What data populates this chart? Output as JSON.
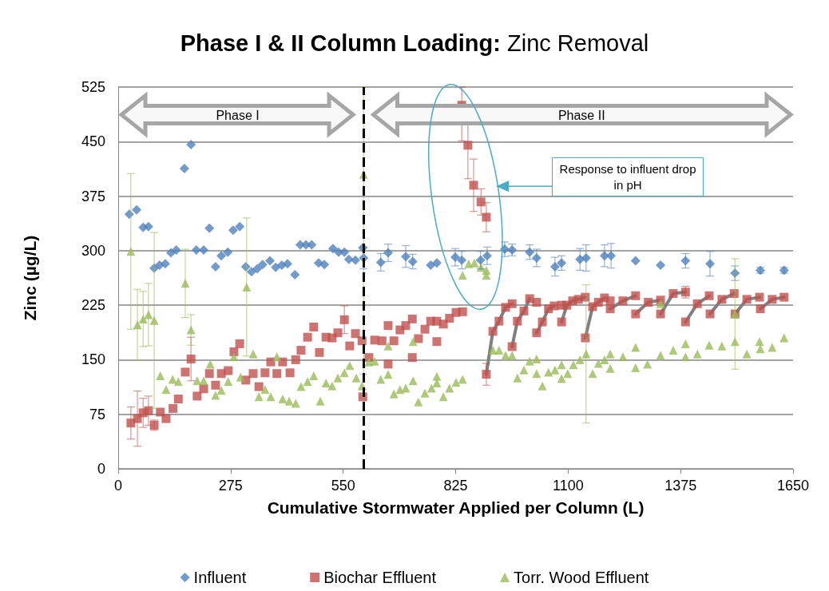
{
  "chart_data": {
    "type": "scatter",
    "title": "Phase I & II Column Loading: Zinc Removal",
    "xlabel": "Cumulative Stormwater Applied per Column (L)",
    "ylabel": "Zinc (µg/L)",
    "xlim": [
      0,
      1650
    ],
    "xticks": [
      0,
      275,
      550,
      825,
      1100,
      1375,
      1650
    ],
    "ylim": [
      0,
      525
    ],
    "yticks": [
      0,
      75,
      150,
      225,
      300,
      375,
      450,
      525
    ],
    "grid": "y",
    "legend": "bottom",
    "annotations": [
      "Phase I",
      "Phase II",
      "Response to influent drop in pH"
    ],
    "ref_lines": [
      {
        "axis": "x",
        "value": 600,
        "color": "#000000",
        "line_style": "dashed"
      }
    ],
    "series": [
      {
        "name": "Influent",
        "color": "#4f81bd",
        "marker": "diamond",
        "x": [
          27,
          45,
          61,
          74,
          88,
          101,
          115,
          129,
          142,
          162,
          178,
          191,
          209,
          223,
          238,
          252,
          268,
          281,
          297,
          312,
          326,
          340,
          353,
          371,
          385,
          400,
          414,
          432,
          445,
          459,
          473,
          490,
          504,
          525,
          539,
          553,
          564,
          580,
          598,
          600,
          642,
          660,
          703,
          720,
          764,
          779,
          824,
          840,
          886,
          902,
          945,
          963,
          1006,
          1023,
          1068,
          1084,
          1129,
          1144,
          1189,
          1205,
          1265,
          1326,
          1387,
          1447,
          1508,
          1570,
          1628
        ],
        "values": [
          350,
          356,
          332,
          333,
          276,
          280,
          282,
          297,
          301,
          413,
          446,
          301,
          301,
          331,
          278,
          293,
          298,
          328,
          333,
          278,
          271,
          275,
          281,
          286,
          277,
          280,
          282,
          267,
          308,
          308,
          308,
          283,
          281,
          303,
          298,
          298,
          288,
          287,
          304,
          290,
          284,
          297,
          292,
          285,
          280,
          283,
          291,
          287,
          287,
          293,
          302,
          301,
          298,
          290,
          278,
          283,
          288,
          290,
          293,
          293,
          286,
          280,
          286,
          282,
          269,
          273,
          273
        ],
        "errors": [
          null,
          null,
          null,
          null,
          null,
          null,
          null,
          null,
          null,
          null,
          null,
          null,
          null,
          null,
          null,
          null,
          null,
          null,
          null,
          null,
          null,
          null,
          null,
          null,
          null,
          null,
          null,
          null,
          null,
          null,
          null,
          null,
          null,
          null,
          null,
          null,
          null,
          null,
          null,
          15,
          12,
          12,
          15,
          10,
          null,
          null,
          12,
          12,
          12,
          12,
          10,
          8,
          10,
          12,
          13,
          10,
          15,
          18,
          15,
          17,
          null,
          null,
          10,
          17,
          10,
          4,
          4
        ]
      },
      {
        "name": "Biochar Effluent",
        "color": "#c0504d",
        "marker": "square",
        "x": [
          31,
          47,
          61,
          74,
          88,
          103,
          117,
          134,
          147,
          164,
          178,
          193,
          209,
          223,
          238,
          252,
          269,
          283,
          297,
          312,
          330,
          344,
          359,
          373,
          388,
          402,
          420,
          434,
          447,
          463,
          478,
          492,
          508,
          523,
          537,
          553,
          566,
          580,
          596,
          598,
          613,
          627,
          645,
          660,
          660,
          674,
          689,
          703,
          719,
          719,
          734,
          750,
          764,
          779,
          779,
          795,
          810,
          826,
          842,
          840,
          855,
          869,
          887,
          900,
          900,
          916,
          931,
          947,
          963,
          963,
          976,
          992,
          1006,
          1023,
          1023,
          1037,
          1052,
          1066,
          1084,
          1084,
          1097,
          1111,
          1125,
          1142,
          1142,
          1160,
          1174,
          1189,
          1203,
          1203,
          1234,
          1265,
          1265,
          1296,
          1326,
          1326,
          1357,
          1387,
          1387,
          1416,
          1445,
          1447,
          1476,
          1506,
          1508,
          1537,
          1568,
          1570,
          1599,
          1628
        ],
        "values": [
          63,
          69,
          77,
          80,
          60,
          78,
          69,
          83,
          96,
          133,
          151,
          100,
          110,
          131,
          115,
          131,
          135,
          161,
          172,
          122,
          131,
          113,
          132,
          147,
          131,
          147,
          132,
          150,
          163,
          181,
          195,
          160,
          181,
          180,
          187,
          205,
          169,
          186,
          176,
          99,
          153,
          177,
          176,
          197,
          144,
          176,
          191,
          197,
          206,
          153,
          179,
          192,
          203,
          203,
          175,
          199,
          207,
          215,
          216,
          500,
          445,
          390,
          367,
          346,
          130,
          189,
          203,
          222,
          227,
          168,
          203,
          217,
          234,
          229,
          187,
          202,
          220,
          224,
          225,
          202,
          225,
          231,
          233,
          236,
          180,
          223,
          229,
          235,
          231,
          220,
          231,
          238,
          213,
          229,
          232,
          213,
          241,
          243,
          202,
          227,
          238,
          213,
          233,
          241,
          213,
          233,
          236,
          220,
          233,
          236
        ],
        "errors": [
          22,
          38,
          20,
          20,
          7,
          null,
          null,
          null,
          null,
          null,
          30,
          null,
          null,
          null,
          null,
          null,
          null,
          null,
          null,
          null,
          null,
          null,
          null,
          null,
          null,
          null,
          null,
          null,
          null,
          null,
          null,
          null,
          null,
          null,
          null,
          19,
          null,
          null,
          null,
          null,
          null,
          null,
          null,
          null,
          null,
          null,
          null,
          null,
          null,
          null,
          null,
          null,
          null,
          null,
          null,
          null,
          null,
          null,
          null,
          [
            451,
            525
          ],
          46,
          36,
          18,
          20,
          15,
          null,
          null,
          null,
          null,
          null,
          null,
          null,
          null,
          null,
          null,
          null,
          null,
          null,
          null,
          null,
          null,
          null,
          null,
          null,
          null,
          null,
          null,
          null,
          null,
          null,
          null,
          null,
          null,
          null,
          null,
          null,
          null,
          8,
          null,
          null,
          null,
          null,
          null,
          null,
          null,
          null,
          null,
          null,
          null,
          null
        ]
      },
      {
        "name": "Torr. Wood Effluent",
        "color": "#9bbb59",
        "marker": "triangle",
        "x": [
          31,
          47,
          61,
          74,
          88,
          103,
          117,
          133,
          147,
          164,
          178,
          193,
          209,
          225,
          238,
          252,
          269,
          283,
          299,
          314,
          330,
          344,
          359,
          373,
          388,
          402,
          418,
          434,
          447,
          463,
          478,
          494,
          508,
          523,
          537,
          553,
          566,
          582,
          596,
          600,
          613,
          627,
          642,
          660,
          660,
          674,
          689,
          703,
          721,
          721,
          734,
          750,
          766,
          779,
          779,
          795,
          810,
          826,
          842,
          842,
          857,
          871,
          887,
          900,
          900,
          916,
          931,
          947,
          963,
          976,
          992,
          1006,
          1023,
          1023,
          1037,
          1052,
          1068,
          1084,
          1084,
          1099,
          1113,
          1129,
          1144,
          1160,
          1174,
          1189,
          1203,
          1203,
          1234,
          1265,
          1265,
          1294,
          1326,
          1326,
          1357,
          1387,
          1387,
          1416,
          1445,
          1476,
          1508,
          1508,
          1537,
          1568,
          1570,
          1599,
          1628
        ],
        "values": [
          299,
          198,
          206,
          212,
          204,
          128,
          109,
          123,
          120,
          255,
          191,
          121,
          121,
          144,
          101,
          108,
          120,
          154,
          126,
          250,
          158,
          99,
          109,
          99,
          154,
          96,
          93,
          90,
          113,
          120,
          128,
          93,
          118,
          114,
          125,
          132,
          142,
          125,
          114,
          405,
          147,
          148,
          123,
          169,
          130,
          103,
          109,
          111,
          175,
          121,
          92,
          104,
          111,
          127,
          118,
          99,
          111,
          119,
          123,
          266,
          282,
          283,
          277,
          273,
          266,
          163,
          163,
          156,
          156,
          125,
          136,
          148,
          151,
          131,
          114,
          133,
          136,
          143,
          124,
          131,
          143,
          150,
          158,
          131,
          145,
          150,
          158,
          138,
          154,
          167,
          139,
          144,
          156,
          227,
          163,
          172,
          154,
          158,
          170,
          169,
          175,
          213,
          158,
          175,
          165,
          167,
          180
        ],
        "errors": [
          107,
          49,
          38,
          43,
          121,
          null,
          null,
          null,
          null,
          47,
          21,
          null,
          null,
          null,
          null,
          null,
          null,
          null,
          null,
          95,
          null,
          null,
          null,
          null,
          null,
          null,
          null,
          null,
          null,
          null,
          null,
          null,
          null,
          null,
          null,
          null,
          null,
          null,
          null,
          [
            130,
            525
          ],
          null,
          null,
          null,
          null,
          null,
          null,
          null,
          null,
          null,
          null,
          null,
          null,
          null,
          null,
          null,
          null,
          null,
          null,
          null,
          null,
          null,
          null,
          null,
          null,
          null,
          null,
          null,
          null,
          null,
          null,
          null,
          null,
          null,
          null,
          null,
          null,
          null,
          null,
          null,
          null,
          null,
          null,
          95,
          null,
          null,
          null,
          null,
          null,
          null,
          null,
          null,
          null,
          null,
          null,
          null,
          null,
          null,
          null,
          null,
          null,
          null,
          76,
          null,
          null,
          null,
          null,
          null
        ]
      },
      {
        "type": "line",
        "color": "#808080",
        "marker": "none",
        "x": [
          900,
          916,
          931,
          947,
          963
        ],
        "values": [
          130,
          189,
          203,
          222,
          227
        ]
      },
      {
        "type": "line",
        "color": "#808080",
        "marker": "none",
        "x": [
          963,
          976,
          992,
          1006
        ],
        "values": [
          168,
          203,
          217,
          234
        ]
      },
      {
        "type": "line",
        "color": "#808080",
        "marker": "none",
        "x": [
          1023,
          1037,
          1052,
          1066
        ],
        "values": [
          187,
          202,
          220,
          224
        ]
      },
      {
        "type": "line",
        "color": "#808080",
        "marker": "none",
        "x": [
          1084,
          1097,
          1111,
          1125,
          1142
        ],
        "values": [
          202,
          225,
          231,
          233,
          236
        ]
      },
      {
        "type": "line",
        "color": "#808080",
        "marker": "none",
        "x": [
          1142,
          1160,
          1174,
          1189
        ],
        "values": [
          180,
          223,
          229,
          235
        ]
      },
      {
        "type": "line",
        "color": "#808080",
        "marker": "none",
        "x": [
          1203,
          1234,
          1265
        ],
        "values": [
          220,
          231,
          238
        ]
      },
      {
        "type": "line",
        "color": "#808080",
        "marker": "none",
        "x": [
          1265,
          1296,
          1326
        ],
        "values": [
          213,
          229,
          232
        ]
      },
      {
        "type": "line",
        "color": "#808080",
        "marker": "none",
        "x": [
          1326,
          1357,
          1387
        ],
        "values": [
          213,
          241,
          243
        ]
      },
      {
        "type": "line",
        "color": "#808080",
        "marker": "none",
        "x": [
          1387,
          1416,
          1445
        ],
        "values": [
          202,
          227,
          238
        ]
      },
      {
        "type": "line",
        "color": "#808080",
        "marker": "none",
        "x": [
          1447,
          1476,
          1506
        ],
        "values": [
          213,
          233,
          241
        ]
      },
      {
        "type": "line",
        "color": "#808080",
        "marker": "none",
        "x": [
          1508,
          1537,
          1568
        ],
        "values": [
          213,
          233,
          236
        ]
      },
      {
        "type": "line",
        "color": "#808080",
        "marker": "none",
        "x": [
          1570,
          1599,
          1628
        ],
        "values": [
          220,
          233,
          236
        ]
      }
    ]
  }
}
